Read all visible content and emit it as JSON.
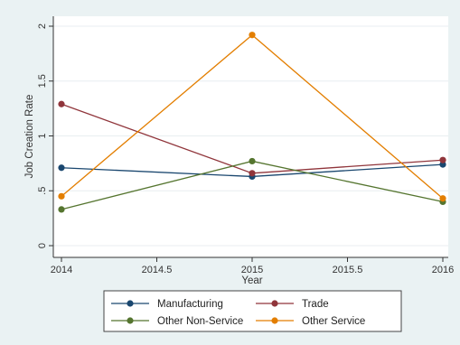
{
  "chart_data": {
    "type": "line",
    "xlabel": "Year",
    "ylabel": "Job Creation Rate",
    "xlim": [
      2014,
      2016
    ],
    "ylim": [
      0,
      2
    ],
    "x_ticks": [
      "2014",
      "2014.5",
      "2015",
      "2015.5",
      "2016"
    ],
    "y_ticks": [
      "0",
      ".5",
      "1",
      "1.5",
      "2"
    ],
    "grid": true,
    "legend_position": "bottom",
    "series": [
      {
        "name": "Manufacturing",
        "color": "#1a476f",
        "x": [
          2014,
          2015,
          2016
        ],
        "y": [
          0.71,
          0.63,
          0.74
        ]
      },
      {
        "name": "Trade",
        "color": "#90353b",
        "x": [
          2014,
          2015,
          2016
        ],
        "y": [
          1.29,
          0.66,
          0.78
        ]
      },
      {
        "name": "Other Non-Service",
        "color": "#55752f",
        "x": [
          2014,
          2015,
          2016
        ],
        "y": [
          0.33,
          0.77,
          0.4
        ]
      },
      {
        "name": "Other Service",
        "color": "#e37e00",
        "x": [
          2014,
          2015,
          2016
        ],
        "y": [
          0.45,
          1.92,
          0.43
        ]
      }
    ]
  }
}
